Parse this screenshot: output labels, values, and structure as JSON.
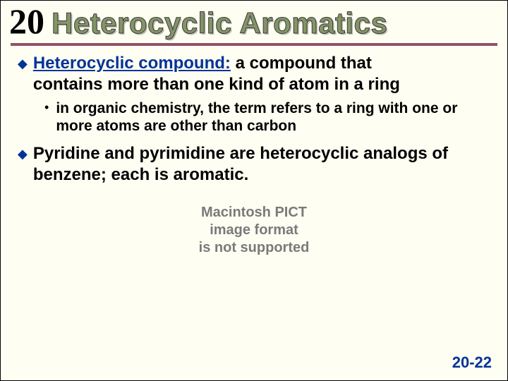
{
  "chapter_number": "20",
  "title": "Heterocyclic Aromatics",
  "rule_color": "#92516a",
  "title_fill": "#849566",
  "bullet_color": "#003399",
  "page_number": "20-22",
  "bullets": [
    {
      "term": "Heterocyclic compound:",
      "rest_1": " a compound that",
      "cont": "contains more than one kind of atom in a ring",
      "sub": "in organic chemistry, the term refers to a ring with one or more atoms are other than carbon"
    },
    {
      "lead": "Pyridine",
      "rest": " and pyrimidine are heterocyclic analogs of benzene; each is aromatic."
    }
  ],
  "placeholder": {
    "line1": "Macintosh PICT",
    "line2": "image format",
    "line3": "is not supported"
  }
}
